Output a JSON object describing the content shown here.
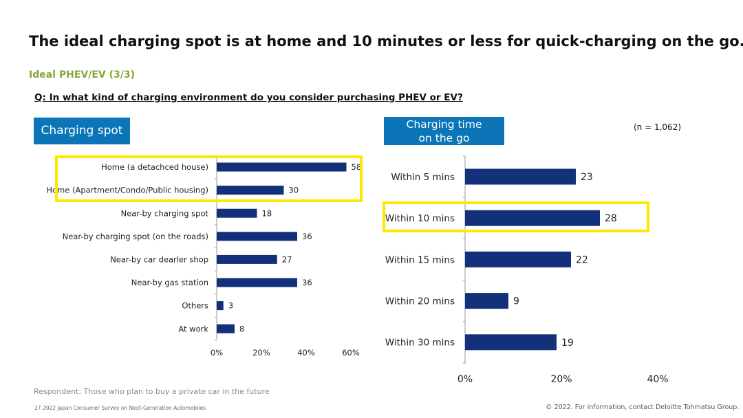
{
  "page": {
    "title": "The ideal charging spot is at home and 10 minutes or less for quick-charging on the go.",
    "subtitle": "Ideal PHEV/EV (3/3)",
    "question": "Q: In what kind of charging environment do you consider purchasing PHEV or EV?",
    "sample_size": "(n = 1,062)",
    "respondent_note": "Respondent: Those who plan to buy a private car in the future",
    "page_footer": "27   2022 Japan Consumer Survey on Next-Generation Automobiles",
    "copyright": "© 2022. For information, contact Deloitte Tohmatsu Group.",
    "highlight_color": "#ffe800",
    "header_color": "#0b75b8",
    "bar_color": "#13307a"
  },
  "chart_data": [
    {
      "type": "bar",
      "orientation": "horizontal",
      "title": "Charging spot",
      "categories": [
        "Home (a detachced house)",
        "Home (Apartment/Condo/Public housing)",
        "Near-by charging spot",
        "Near-by charging spot (on the roads)",
        "Near-by car dearler shop",
        "Near-by gas station",
        "Others",
        "At work"
      ],
      "values": [
        58,
        30,
        18,
        36,
        27,
        36,
        3,
        8
      ],
      "xlim": [
        0,
        60
      ],
      "xticks": [
        "0%",
        "20%",
        "40%",
        "60%"
      ],
      "highlighted": [
        "Home (a detachced house)",
        "Home (Apartment/Condo/Public housing)"
      ]
    },
    {
      "type": "bar",
      "orientation": "horizontal",
      "title": "Charging time on the go",
      "categories": [
        "Within 5 mins",
        "Within 10 mins",
        "Within 15 mins",
        "Within 20 mins",
        "Within 30 mins"
      ],
      "values": [
        23,
        28,
        22,
        9,
        19
      ],
      "xlim": [
        0,
        40
      ],
      "xticks": [
        "0%",
        "20%",
        "40%"
      ],
      "highlighted": [
        "Within 10 mins"
      ]
    }
  ]
}
